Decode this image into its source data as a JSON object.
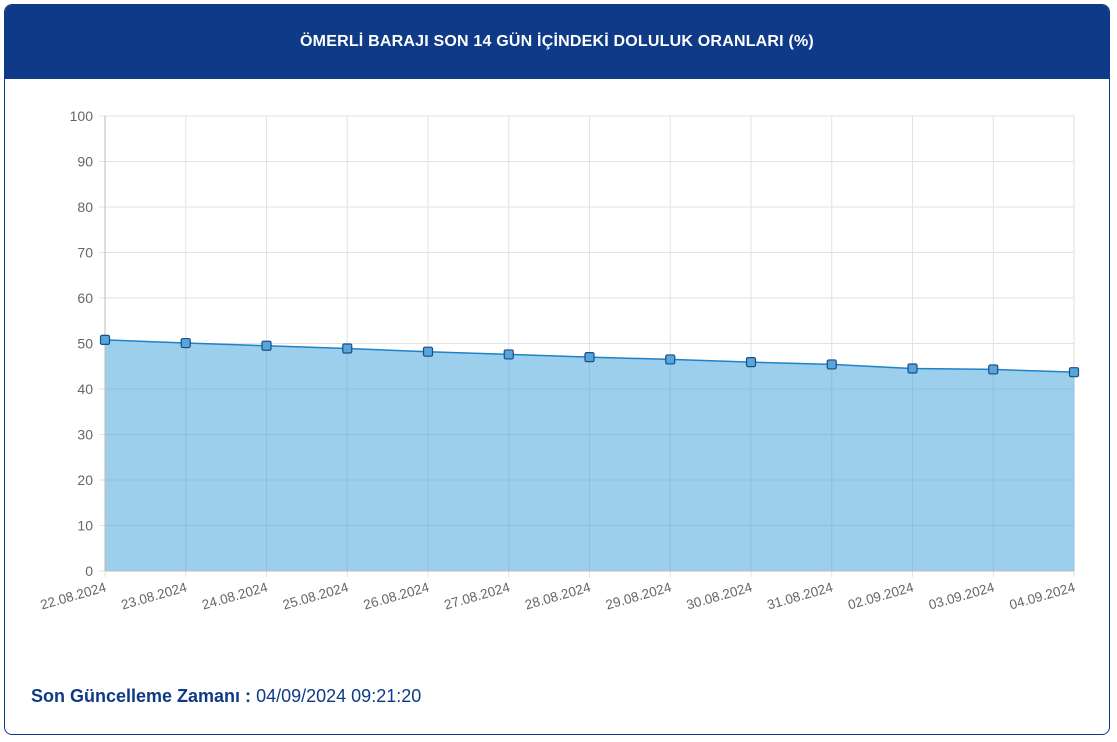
{
  "header": {
    "title": "ÖMERLİ BARAJI SON 14 GÜN İÇİNDEKİ DOLULUK ORANLARI (%)"
  },
  "footer": {
    "label": "Son Güncelleme Zamanı :",
    "value": "04/09/2024 09:21:20"
  },
  "colors": {
    "header_bg": "#0f3a87",
    "line": "#1f82c8",
    "fill": "#9ccfeb",
    "grid": "#e2e2e2",
    "tick_text": "#666666"
  },
  "chart_data": {
    "type": "area",
    "title": "",
    "xlabel": "",
    "ylabel": "",
    "ylim": [
      0,
      100
    ],
    "yticks": [
      0,
      10,
      20,
      30,
      40,
      50,
      60,
      70,
      80,
      90,
      100
    ],
    "grid": true,
    "categories": [
      "22.08.2024",
      "23.08.2024",
      "24.08.2024",
      "25.08.2024",
      "26.08.2024",
      "27.08.2024",
      "28.08.2024",
      "29.08.2024",
      "30.08.2024",
      "31.08.2024",
      "02.09.2024",
      "03.09.2024",
      "04.09.2024"
    ],
    "values": [
      50.8,
      50.1,
      49.5,
      48.9,
      48.2,
      47.6,
      47.0,
      46.5,
      45.9,
      45.4,
      44.5,
      44.3,
      43.7
    ]
  }
}
